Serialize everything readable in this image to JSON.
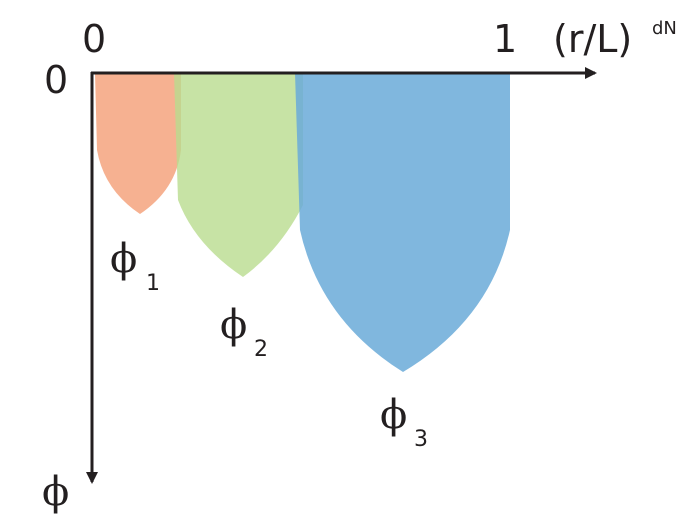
{
  "axes": {
    "origin_x": "0",
    "origin_y": "0",
    "x_end": "1",
    "x_label": "(r/L)",
    "x_label_sup": "dN",
    "y_label": "ϕ"
  },
  "regions": [
    {
      "symbol": "ϕ",
      "subscript": "1"
    },
    {
      "symbol": "ϕ",
      "subscript": "2"
    },
    {
      "symbol": "ϕ",
      "subscript": "3"
    }
  ]
}
